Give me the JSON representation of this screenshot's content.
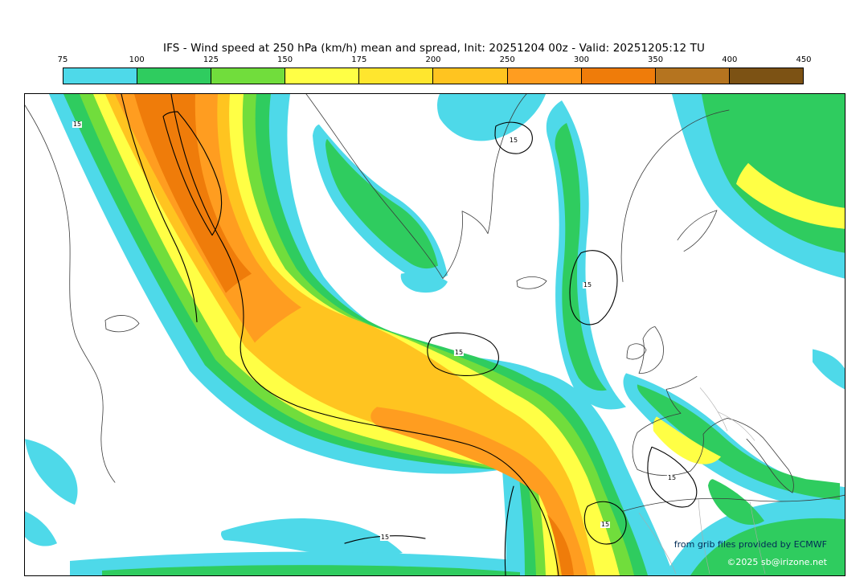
{
  "title": "IFS - Wind speed at 250 hPa (km/h) mean and spread, Init: 20251204 00z - Valid: 20251205:12 TU",
  "colorbar": {
    "tick_labels": [
      "75",
      "100",
      "125",
      "150",
      "175",
      "200",
      "250",
      "300",
      "350",
      "400",
      "450"
    ],
    "segment_colors": [
      "#4ed9e9",
      "#2fcc5f",
      "#71dd3c",
      "#ffff45",
      "#ffe62e",
      "#ffc420",
      "#ff9d20",
      "#ef7c0a",
      "#b5741f",
      "#7c5214"
    ]
  },
  "map": {
    "spread_contour_label": "15",
    "credits_line1": "from grib files provided by ECMWF",
    "credits_line2": "©2025 sb@irizone.net"
  },
  "chart_data": {
    "type": "heatmap",
    "title": "IFS - Wind speed at 250 hPa (km/h) mean and spread",
    "init": "20251204 00z",
    "valid": "20251205:12 TU",
    "units": "km/h",
    "scale_ticks": [
      75,
      100,
      125,
      150,
      175,
      200,
      250,
      300,
      350,
      400,
      450
    ],
    "scale_colors": [
      "#4ed9e9",
      "#2fcc5f",
      "#71dd3c",
      "#ffff45",
      "#ffe62e",
      "#ffc420",
      "#ff9d20",
      "#ef7c0a",
      "#b5741f",
      "#7c5214"
    ],
    "spread_contour_label": "15",
    "legend_position": "top"
  }
}
